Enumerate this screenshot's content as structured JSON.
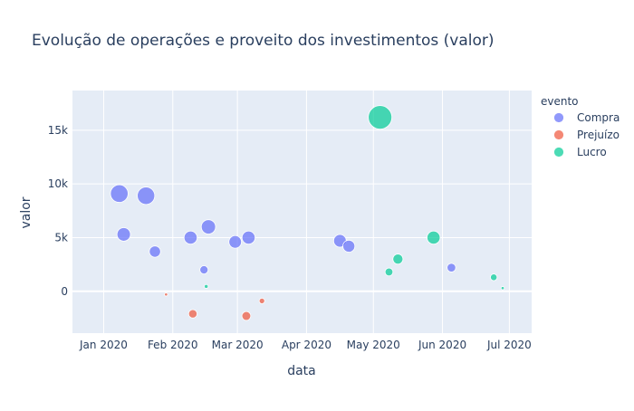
{
  "chart_data": {
    "type": "scatter",
    "title": "Evolução de operações e proveito dos investimentos (valor)",
    "xlabel": "data",
    "ylabel": "valor",
    "xlim": [
      "2019-12-18",
      "2020-07-11"
    ],
    "ylim": [
      -3900,
      18700
    ],
    "x_ticks": [
      {
        "date": "2020-01-01",
        "label": "Jan 2020"
      },
      {
        "date": "2020-02-01",
        "label": "Feb 2020"
      },
      {
        "date": "2020-03-01",
        "label": "Mar 2020"
      },
      {
        "date": "2020-04-01",
        "label": "Apr 2020"
      },
      {
        "date": "2020-05-01",
        "label": "May 2020"
      },
      {
        "date": "2020-06-01",
        "label": "Jun 2020"
      },
      {
        "date": "2020-07-01",
        "label": "Jul 2020"
      }
    ],
    "y_ticks": [
      {
        "value": 0,
        "label": "0"
      },
      {
        "value": 5000,
        "label": "5k"
      },
      {
        "value": 10000,
        "label": "10k"
      },
      {
        "value": 15000,
        "label": "15k"
      }
    ],
    "grid": true,
    "legend": {
      "title": "evento",
      "position": "right"
    },
    "series": [
      {
        "name": "Compra",
        "color": "#636efa",
        "points": [
          {
            "x": "2020-01-08",
            "y": 9100
          },
          {
            "x": "2020-01-10",
            "y": 5300
          },
          {
            "x": "2020-01-20",
            "y": 8900
          },
          {
            "x": "2020-01-24",
            "y": 3700
          },
          {
            "x": "2020-02-09",
            "y": 5000
          },
          {
            "x": "2020-02-15",
            "y": 2000
          },
          {
            "x": "2020-02-17",
            "y": 6000
          },
          {
            "x": "2020-02-29",
            "y": 4600
          },
          {
            "x": "2020-03-06",
            "y": 5000
          },
          {
            "x": "2020-04-16",
            "y": 4700
          },
          {
            "x": "2020-04-20",
            "y": 4200
          },
          {
            "x": "2020-06-05",
            "y": 2200
          }
        ]
      },
      {
        "name": "Prejuízo",
        "color": "#ef553b",
        "points": [
          {
            "x": "2020-01-29",
            "y": -300
          },
          {
            "x": "2020-02-10",
            "y": -2100
          },
          {
            "x": "2020-03-05",
            "y": -2300
          },
          {
            "x": "2020-03-12",
            "y": -900
          }
        ]
      },
      {
        "name": "Lucro",
        "color": "#00cc96",
        "points": [
          {
            "x": "2020-02-16",
            "y": 450
          },
          {
            "x": "2020-05-04",
            "y": 16200
          },
          {
            "x": "2020-05-08",
            "y": 1800
          },
          {
            "x": "2020-05-12",
            "y": 3000
          },
          {
            "x": "2020-05-28",
            "y": 5000
          },
          {
            "x": "2020-06-24",
            "y": 1300
          },
          {
            "x": "2020-06-28",
            "y": 300
          }
        ]
      }
    ]
  }
}
